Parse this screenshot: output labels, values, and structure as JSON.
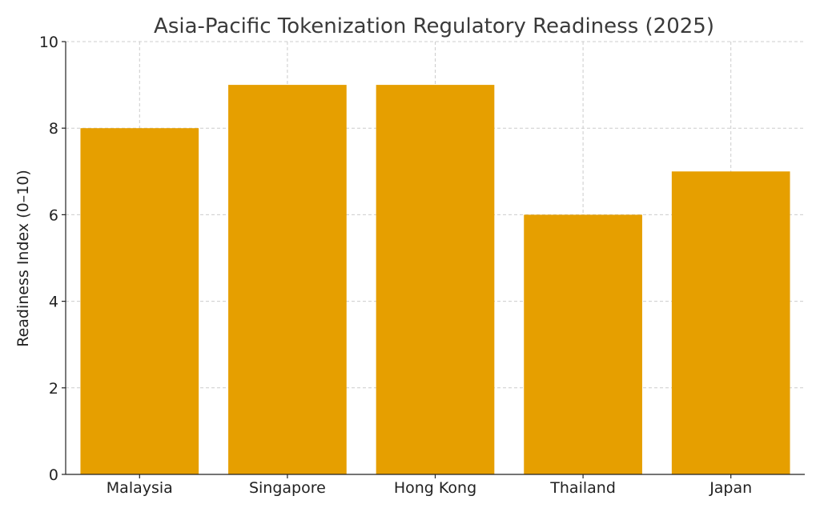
{
  "chart_data": {
    "type": "bar",
    "title": "Asia-Pacific Tokenization Regulatory Readiness (2025)",
    "xlabel": "",
    "ylabel": "Readiness Index (0–10)",
    "categories": [
      "Malaysia",
      "Singapore",
      "Hong Kong",
      "Thailand",
      "Japan"
    ],
    "values": [
      8,
      9,
      9,
      6,
      7
    ],
    "ylim": [
      0,
      10
    ],
    "yticks": [
      "0",
      "2",
      "4",
      "6",
      "8",
      "10"
    ],
    "grid": true,
    "grid_style": "dashed",
    "bar_color": "#e69f00",
    "grid_color": "#cccccc",
    "axis_color": "#222222"
  }
}
